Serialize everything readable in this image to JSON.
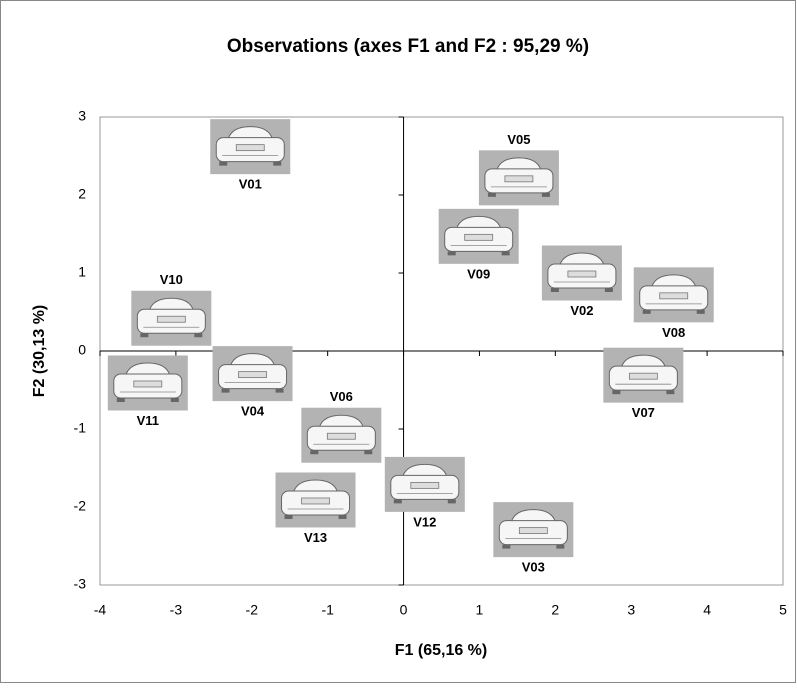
{
  "chart_data": {
    "type": "scatter",
    "title": "Observations (axes F1 and F2 : 95,29 %)",
    "x_label": "F1 (65,16 %)",
    "y_label": "F2 (30,13 %)",
    "labels": [
      "V01",
      "V05",
      "V09",
      "V02",
      "V08",
      "V10",
      "V11",
      "V04",
      "V06",
      "V07",
      "V12",
      "V13",
      "V03"
    ],
    "x": [
      -2.02,
      1.52,
      0.99,
      2.35,
      3.56,
      -3.06,
      -3.37,
      -1.99,
      -0.82,
      3.16,
      0.28,
      -1.16,
      1.71
    ],
    "values": [
      2.62,
      2.22,
      1.47,
      1.0,
      0.72,
      0.42,
      -0.41,
      -0.29,
      -1.08,
      -0.31,
      -1.71,
      -1.91,
      -2.29
    ],
    "xlim": [
      -4,
      5
    ],
    "xticks": [
      -4,
      -3,
      -2,
      -1,
      0,
      1,
      2,
      3,
      4,
      5
    ],
    "ylim": [
      -3,
      3
    ],
    "yticks": [
      -3,
      -2,
      -1,
      0,
      1,
      2,
      3
    ]
  }
}
